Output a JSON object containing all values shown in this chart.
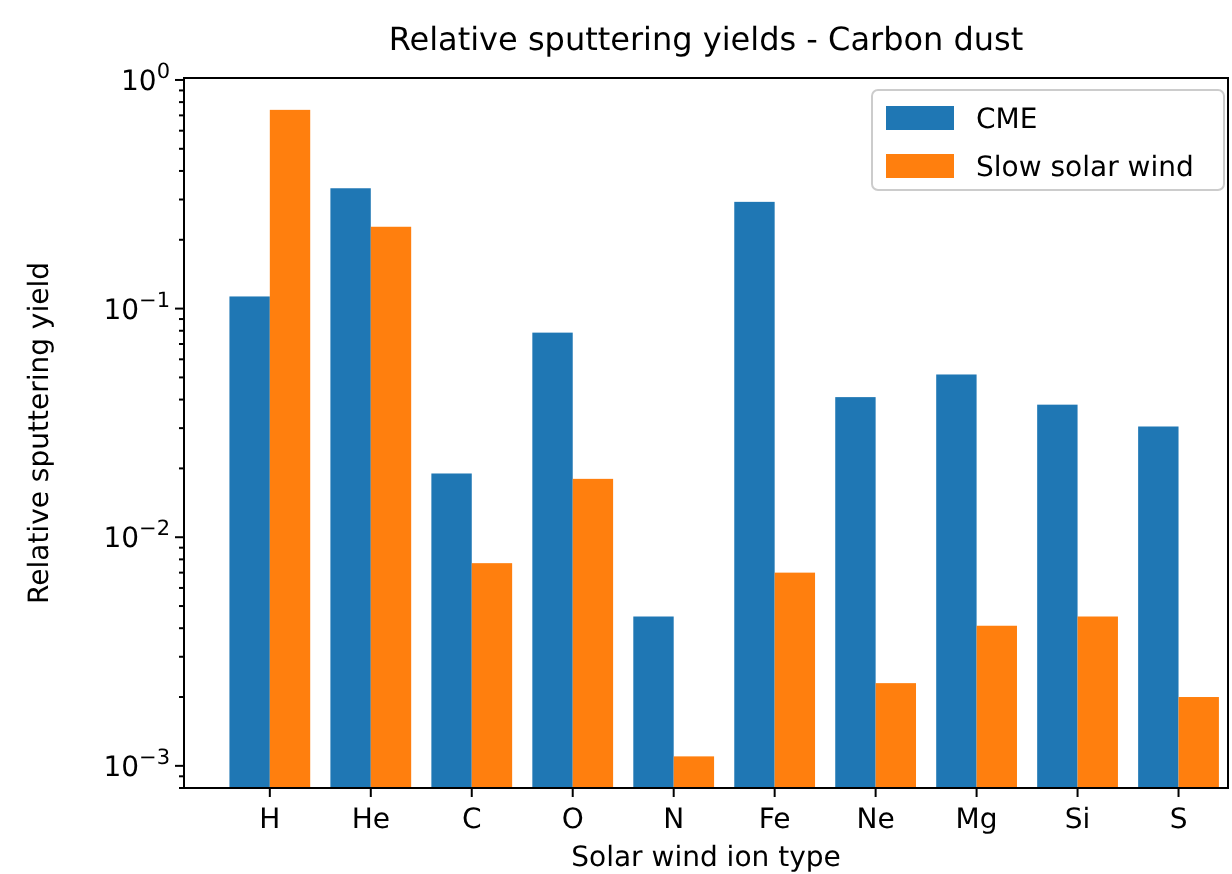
{
  "chart_data": {
    "type": "bar",
    "title": "Relative sputtering yields - Carbon dust",
    "xlabel": "Solar wind ion type",
    "ylabel": "Relative sputtering yield",
    "categories": [
      "H",
      "He",
      "C",
      "O",
      "N",
      "Fe",
      "Ne",
      "Mg",
      "Si",
      "S"
    ],
    "series": [
      {
        "name": "CME",
        "color": "#1f77b4",
        "values": [
          0.113,
          0.336,
          0.019,
          0.0785,
          0.0045,
          0.293,
          0.041,
          0.0515,
          0.038,
          0.0305
        ]
      },
      {
        "name": "Slow solar wind",
        "color": "#ff7f0e",
        "values": [
          0.74,
          0.228,
          0.0077,
          0.018,
          0.0011,
          0.007,
          0.0023,
          0.0041,
          0.0045,
          0.002
        ]
      }
    ],
    "log": true,
    "ylim": [
      0.0008,
      1.02
    ],
    "yticks": [
      {
        "value": 0.001,
        "label": "10$^{−3}$"
      },
      {
        "value": 0.01,
        "label": "10$^{−2}$"
      },
      {
        "value": 0.1,
        "label": "10$^{−1}$"
      },
      {
        "value": 1,
        "label": "10$^{0}$"
      },
      {
        "value": 0.0008,
        "label": null
      },
      {
        "value": 0.0009,
        "label": null
      },
      {
        "value": 0.002,
        "label": null
      },
      {
        "value": 0.003,
        "label": null
      },
      {
        "value": 0.004,
        "label": null
      },
      {
        "value": 0.005,
        "label": null
      },
      {
        "value": 0.006,
        "label": null
      },
      {
        "value": 0.007,
        "label": null
      },
      {
        "value": 0.008,
        "label": null
      },
      {
        "value": 0.009,
        "label": null
      },
      {
        "value": 0.02,
        "label": null
      },
      {
        "value": 0.03,
        "label": null
      },
      {
        "value": 0.04,
        "label": null
      },
      {
        "value": 0.05,
        "label": null
      },
      {
        "value": 0.06,
        "label": null
      },
      {
        "value": 0.07,
        "label": null
      },
      {
        "value": 0.08,
        "label": null
      },
      {
        "value": 0.09,
        "label": null
      },
      {
        "value": 0.2,
        "label": null
      },
      {
        "value": 0.3,
        "label": null
      },
      {
        "value": 0.4,
        "label": null
      },
      {
        "value": 0.5,
        "label": null
      },
      {
        "value": 0.6,
        "label": null
      },
      {
        "value": 0.7,
        "label": null
      },
      {
        "value": 0.8,
        "label": null
      },
      {
        "value": 0.9,
        "label": null
      }
    ],
    "legend": "top right",
    "grid": false
  }
}
